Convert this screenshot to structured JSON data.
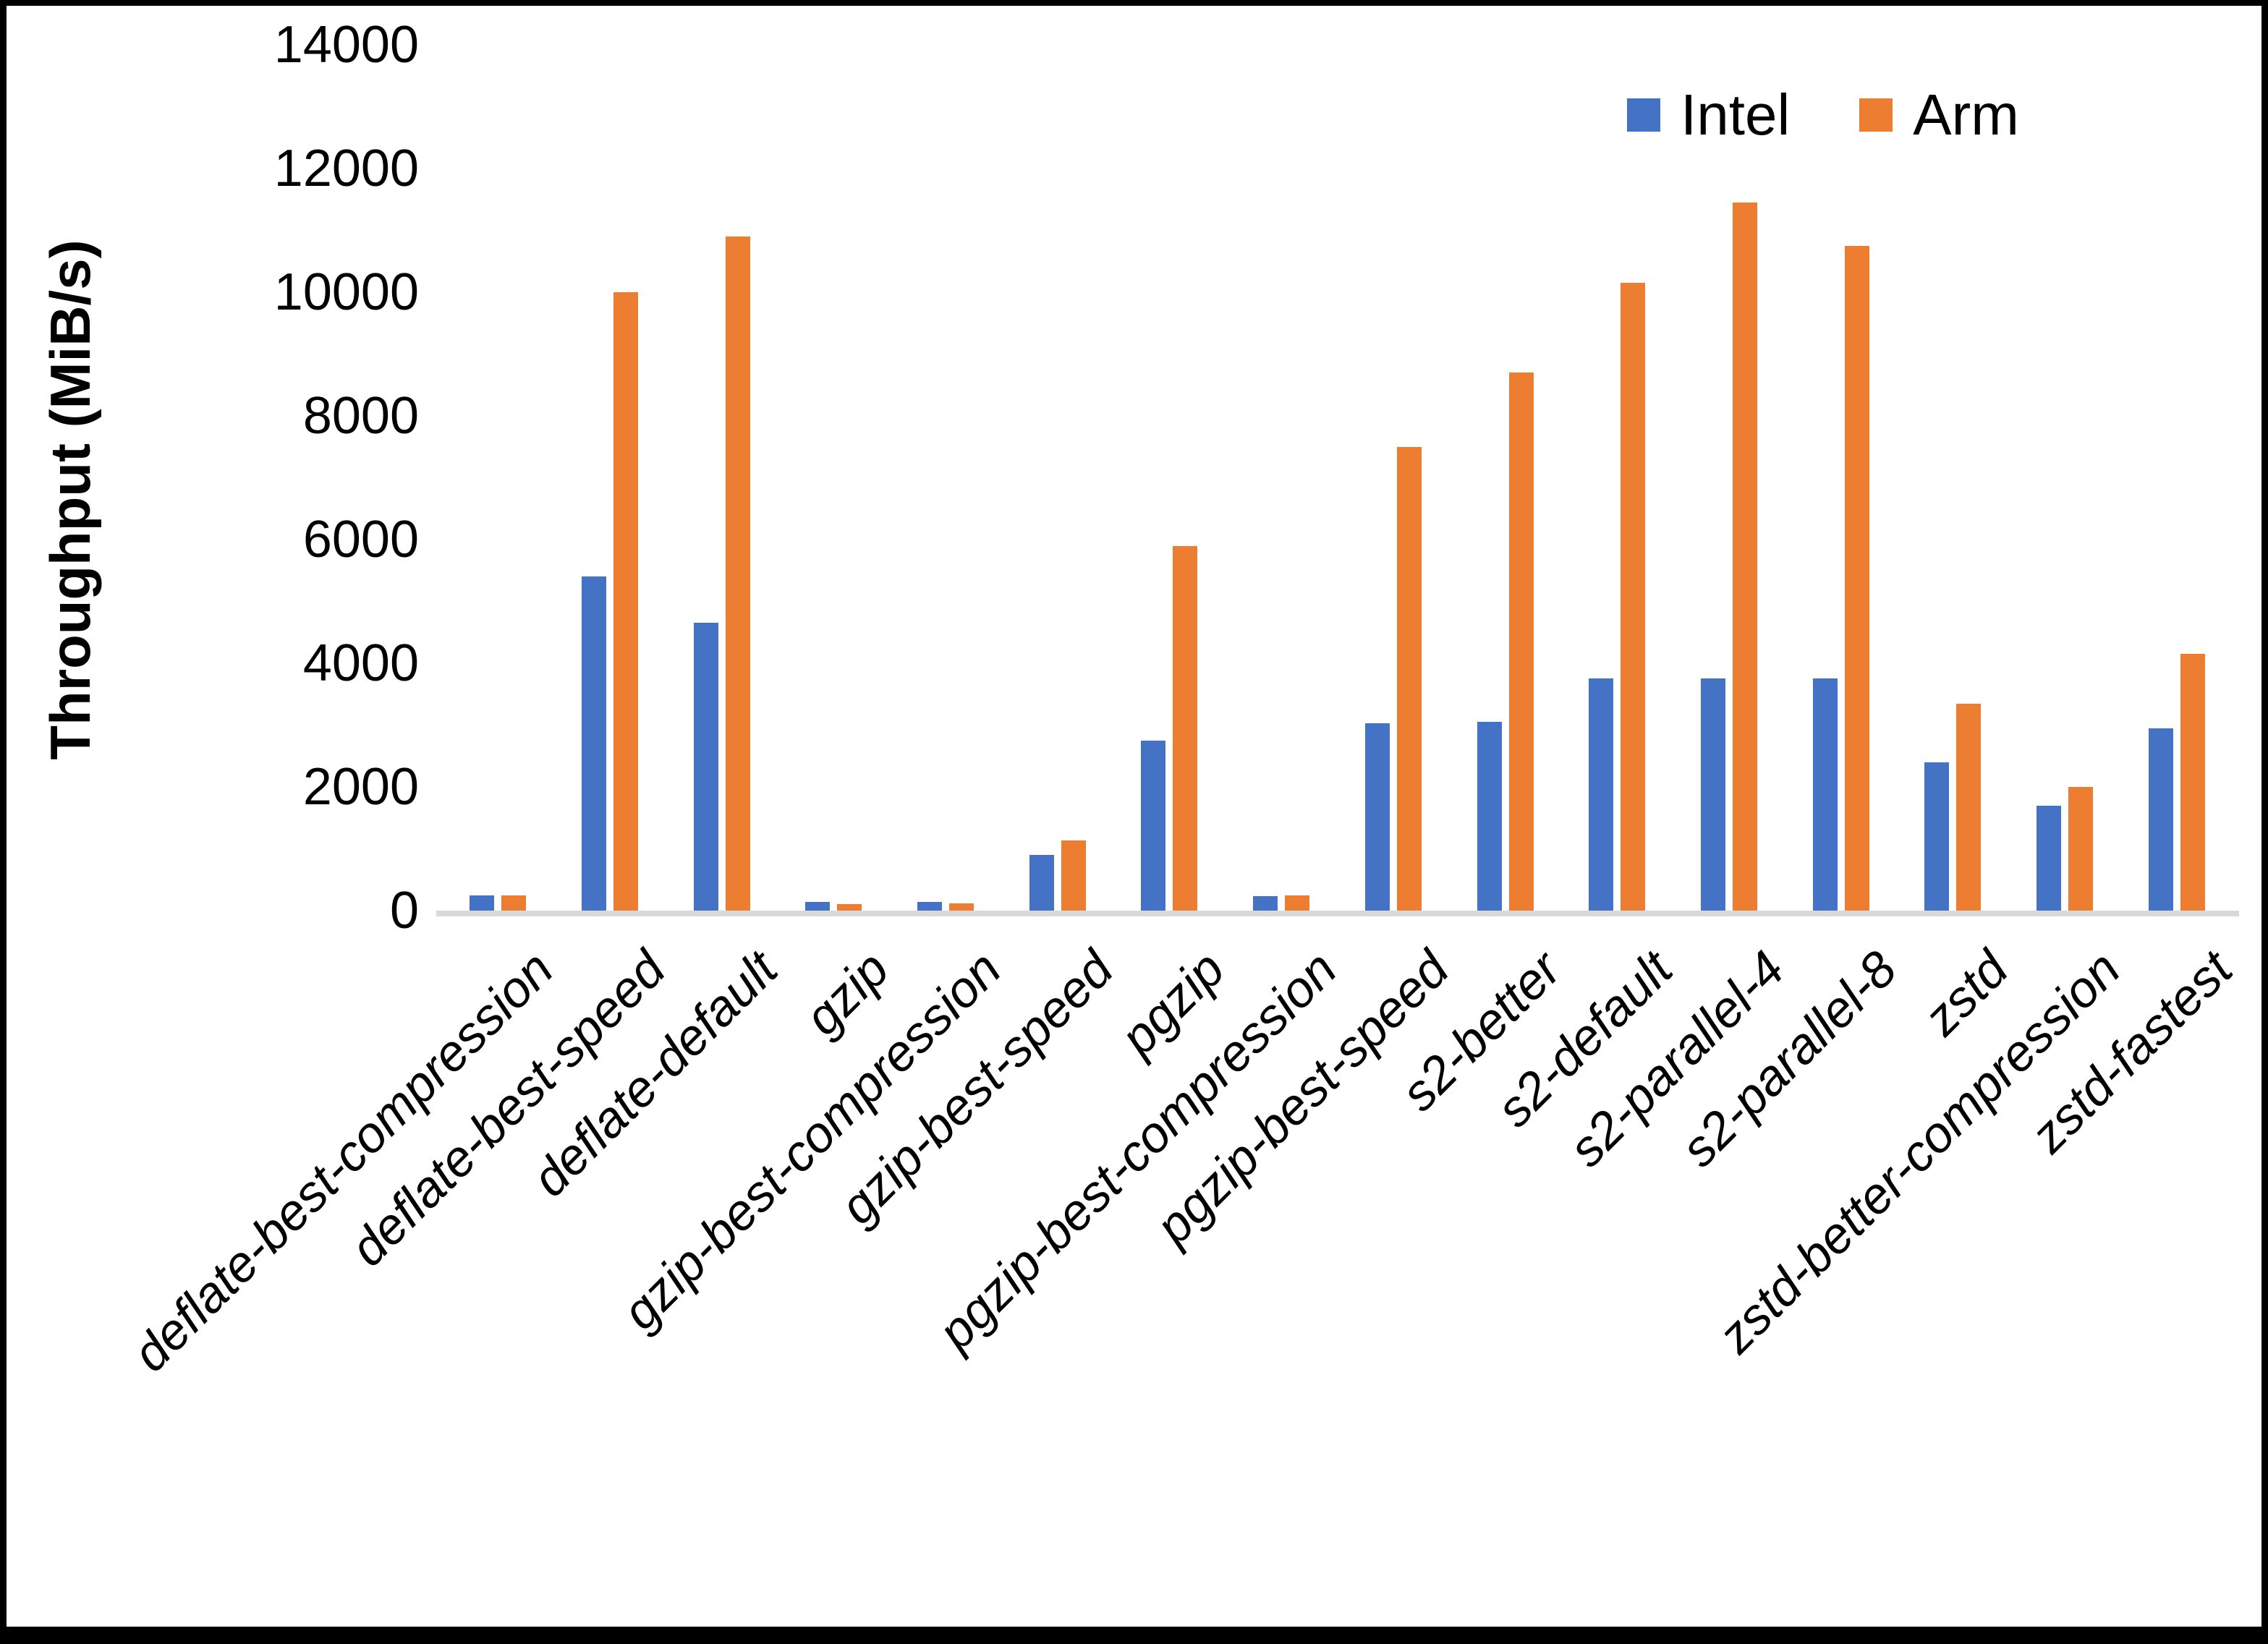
{
  "chart_data": {
    "type": "bar",
    "title": "",
    "ylabel": "Throughput (MiB/s)",
    "xlabel": "",
    "ylim": [
      0,
      14000
    ],
    "yticks": [
      0,
      2000,
      4000,
      6000,
      8000,
      10000,
      12000,
      14000
    ],
    "grid": false,
    "legend_position": "top-right",
    "axis_line_color": "#d9d9d9",
    "categories": [
      "deflate-best-compression",
      "deflate-best-speed",
      "deflate-default",
      "gzip",
      "gzip-best-compression",
      "gzip-best-speed",
      "pgzip",
      "pgzip-best-compression",
      "pgzip-best-speed",
      "s2-better",
      "s2-default",
      "s2-parallel-4",
      "s2-parallel-8",
      "zstd",
      "zstd-better-compression",
      "zstd-fastest"
    ],
    "series": [
      {
        "name": "Intel",
        "color": "#4472c4",
        "values": [
          250,
          5400,
          4650,
          140,
          140,
          900,
          2750,
          230,
          3030,
          3050,
          3750,
          3750,
          3750,
          2400,
          1700,
          2950
        ]
      },
      {
        "name": "Arm",
        "color": "#ed7d31",
        "values": [
          250,
          10000,
          10900,
          110,
          120,
          1130,
          5900,
          250,
          7500,
          8700,
          10150,
          11450,
          10750,
          3350,
          2000,
          4150
        ]
      }
    ]
  }
}
